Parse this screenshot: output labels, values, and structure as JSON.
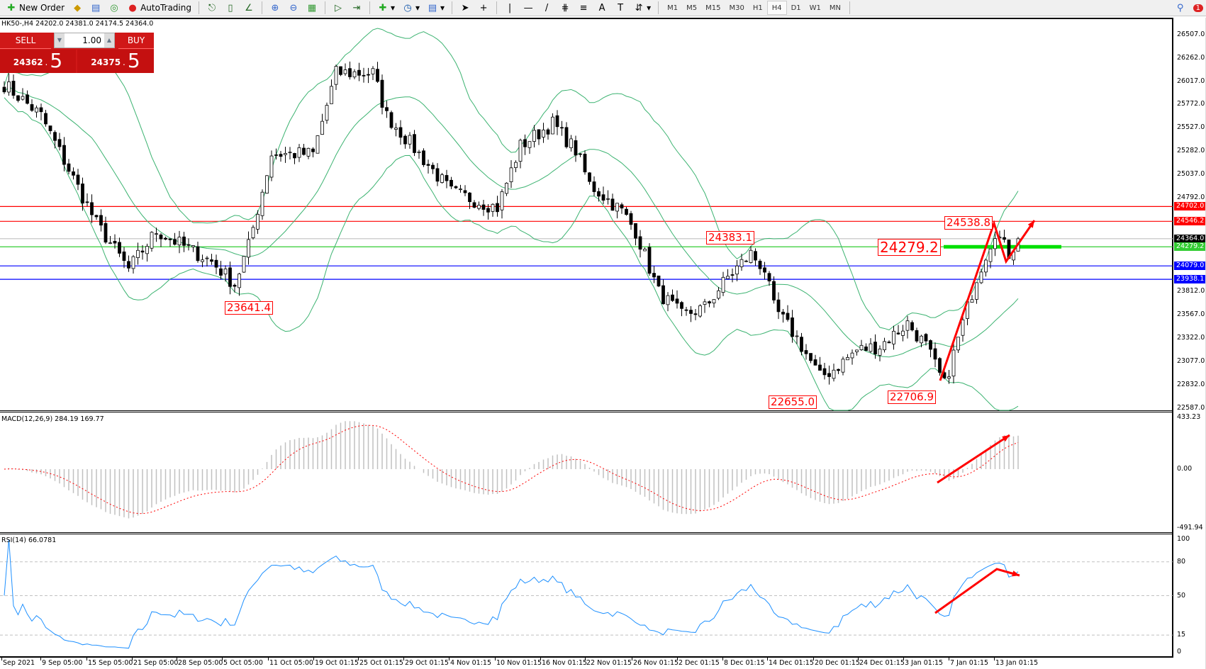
{
  "toolbar": {
    "new_order": "New Order",
    "autotrading": "AutoTrading",
    "timeframes": [
      "M1",
      "M5",
      "M15",
      "M30",
      "H1",
      "H4",
      "D1",
      "W1",
      "MN"
    ],
    "selected_timeframe": "H4",
    "notifications": "1"
  },
  "symbol_header": "HK50-,H4  24202.0 24381.0 24174.5 24364.0",
  "trade_panel": {
    "sell": "SELL",
    "buy": "BUY",
    "volume": "1.00",
    "sell_price_main": "24362",
    "sell_price_pip": "5",
    "buy_price_main": "24375",
    "buy_price_pip": "5",
    "sell_price_sep": ".",
    "buy_price_sep": "."
  },
  "price_axis": {
    "ticks": [
      "26507.0",
      "26262.0",
      "26017.0",
      "25772.0",
      "25527.0",
      "25282.0",
      "25037.0",
      "24792.0",
      "23812.0",
      "23567.0",
      "23322.0",
      "23077.0",
      "22832.0",
      "22587.0"
    ]
  },
  "levels": [
    {
      "price": 24702.0,
      "label": "24702.0",
      "color": "#ff0000"
    },
    {
      "price": 24546.2,
      "label": "24546.2",
      "color": "#ff0000"
    },
    {
      "price": 24364.0,
      "label": "24364.0",
      "color": "#000000",
      "line": "#c0c0c0"
    },
    {
      "price": 24279.2,
      "label": "24279.2",
      "color": "#32cd32"
    },
    {
      "price": 24079.0,
      "label": "24079.0",
      "color": "#0000ff"
    },
    {
      "price": 23938.1,
      "label": "23938.1",
      "color": "#0000ff"
    }
  ],
  "annotations": [
    "23641.4",
    "24383.1",
    "22655.0",
    "22706.9",
    "24538.8",
    "24279.2"
  ],
  "macd": {
    "label": "MACD(12,26,9) 284.19 169.77",
    "max": "433.23",
    "zero": "0.00",
    "min": "-491.94"
  },
  "rsi": {
    "label": "RSI(14) 66.0781",
    "levels": [
      "100",
      "80",
      "50",
      "15",
      "0"
    ]
  },
  "time_axis": [
    "Sep 2021",
    "9 Sep 05:00",
    "15 Sep 05:00",
    "21 Sep 05:00",
    "28 Sep 05:00",
    "5 Oct 05:00",
    "11 Oct 05:00",
    "19 Oct 01:15",
    "25 Oct 01:15",
    "29 Oct 01:15",
    "4 Nov 01:15",
    "10 Nov 01:15",
    "16 Nov 01:15",
    "22 Nov 01:15",
    "26 Nov 01:15",
    "2 Dec 01:15",
    "8 Dec 01:15",
    "14 Dec 01:15",
    "20 Dec 01:15",
    "24 Dec 01:15",
    "3 Jan 01:15",
    "7 Jan 01:15",
    "13 Jan 01:15"
  ],
  "chart_data": {
    "type": "candlestick",
    "symbol": "HK50-",
    "timeframe": "H4",
    "last": {
      "open": 24202.0,
      "high": 24381.0,
      "low": 24174.5,
      "close": 24364.0
    },
    "ylim": [
      22587.0,
      26507.0
    ],
    "approx_close_path": [
      [
        0,
        25984
      ],
      [
        8,
        25655
      ],
      [
        20,
        24526
      ],
      [
        27,
        24043
      ],
      [
        33,
        24444
      ],
      [
        45,
        24125
      ],
      [
        50,
        23886
      ],
      [
        53,
        24287
      ],
      [
        58,
        25254
      ],
      [
        67,
        25254
      ],
      [
        72,
        26102
      ],
      [
        80,
        26102
      ],
      [
        83,
        25655
      ],
      [
        90,
        25254
      ],
      [
        97,
        24853
      ],
      [
        107,
        24690
      ],
      [
        112,
        25336
      ],
      [
        119,
        25574
      ],
      [
        124,
        25291
      ],
      [
        127,
        24935
      ],
      [
        134,
        24653
      ],
      [
        137,
        24444
      ],
      [
        142,
        23804
      ],
      [
        147,
        23559
      ],
      [
        152,
        23641
      ],
      [
        157,
        23961
      ],
      [
        162,
        24206
      ],
      [
        165,
        24043
      ],
      [
        167,
        23641
      ],
      [
        172,
        23321
      ],
      [
        177,
        22912
      ],
      [
        180,
        22994
      ],
      [
        185,
        23195
      ],
      [
        190,
        23239
      ],
      [
        196,
        23477
      ],
      [
        200,
        23239
      ],
      [
        204,
        22830
      ],
      [
        208,
        23477
      ],
      [
        211,
        23961
      ],
      [
        215,
        24444
      ],
      [
        218,
        24206
      ],
      [
        220,
        24364
      ]
    ],
    "indicators": [
      "Bollinger Bands",
      "MACD(12,26,9)",
      "RSI(14)"
    ],
    "colors": {
      "bands": "#3cb371",
      "macd_signal": "#ff0000",
      "macd_hist": "#c0c0c0",
      "rsi": "#1e90ff",
      "arrows": "#ff0000"
    }
  }
}
